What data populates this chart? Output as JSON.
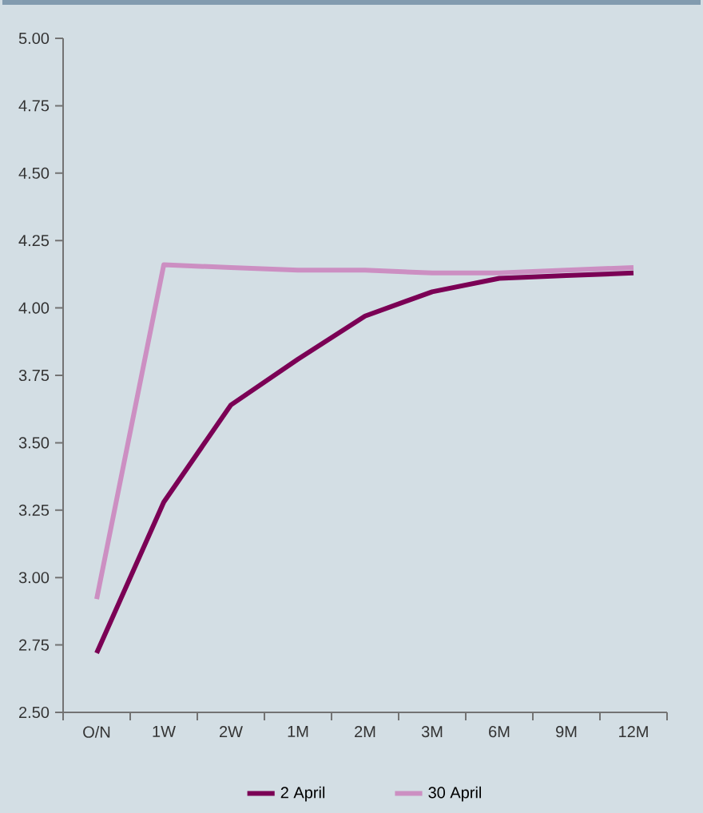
{
  "chart_data": {
    "type": "line",
    "categories": [
      "O/N",
      "1W",
      "2W",
      "1M",
      "2M",
      "3M",
      "6M",
      "9M",
      "12M"
    ],
    "series": [
      {
        "name": "2 April",
        "color": "#7b0055",
        "values": [
          2.72,
          3.28,
          3.64,
          3.81,
          3.97,
          4.06,
          4.11,
          4.12,
          4.13
        ]
      },
      {
        "name": "30 April",
        "color": "#cc8fc2",
        "values": [
          2.92,
          4.16,
          4.15,
          4.14,
          4.14,
          4.13,
          4.13,
          4.14,
          4.15
        ]
      }
    ],
    "ylim": [
      2.5,
      5.0
    ],
    "yticks": [
      {
        "value": 2.5,
        "label": "2.50"
      },
      {
        "value": 2.75,
        "label": "2.75"
      },
      {
        "value": 3.0,
        "label": "3.00"
      },
      {
        "value": 3.25,
        "label": "3.25"
      },
      {
        "value": 3.5,
        "label": "3.50"
      },
      {
        "value": 3.75,
        "label": "3.75"
      },
      {
        "value": 4.0,
        "label": "4.00"
      },
      {
        "value": 4.25,
        "label": "4.25"
      },
      {
        "value": 4.5,
        "label": "4.50"
      },
      {
        "value": 4.75,
        "label": "4.75"
      },
      {
        "value": 5.0,
        "label": "5.00"
      }
    ],
    "grid": false,
    "legend": "bottom",
    "marker": "none",
    "line_style": "solid"
  }
}
